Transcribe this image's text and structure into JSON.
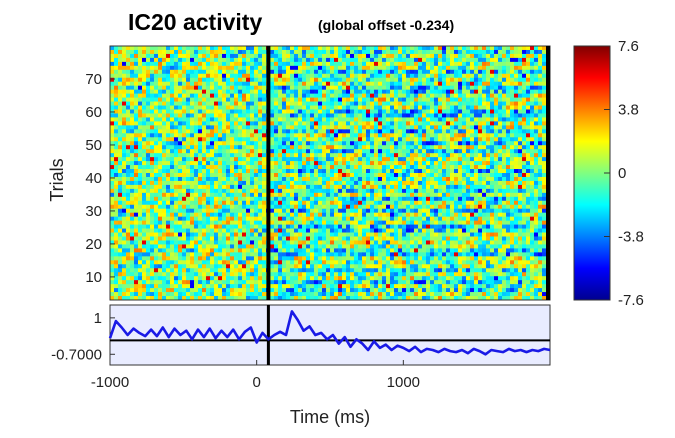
{
  "chart_data": [
    {
      "type": "heatmap",
      "title": "IC20 activity",
      "subtitle": "(global offset -0.234)",
      "xlabel": "",
      "ylabel": "Trials",
      "xlim": [
        -1000,
        2000
      ],
      "ylim": [
        3,
        80
      ],
      "yticks": [
        "10",
        "20",
        "30",
        "40",
        "50",
        "60",
        "70"
      ],
      "event_line_x": 80,
      "colormap": "jet",
      "colorbar": {
        "min": -7.6,
        "max": 7.6,
        "ticks": [
          "7.6",
          "3.8",
          "0",
          "-3.8",
          "-7.6"
        ]
      },
      "grid": false
    },
    {
      "type": "line",
      "title": "",
      "xlabel": "Time (ms)",
      "ylabel": "",
      "xticks": [
        "-1000",
        "0",
        "1000"
      ],
      "yticks": [
        "1",
        "-0.7000"
      ],
      "xlim": [
        -1000,
        2000
      ],
      "ylim": [
        -1.2,
        1.6
      ],
      "event_line_x": 80,
      "baseline": -0.05,
      "series": [
        {
          "color": "#1a1ae6",
          "x": [
            -1000,
            -960,
            -920,
            -880,
            -840,
            -800,
            -760,
            -720,
            -680,
            -640,
            -600,
            -560,
            -520,
            -480,
            -440,
            -400,
            -360,
            -320,
            -280,
            -240,
            -200,
            -160,
            -120,
            -80,
            -40,
            0,
            40,
            80,
            120,
            160,
            200,
            240,
            280,
            320,
            360,
            400,
            440,
            480,
            520,
            560,
            600,
            640,
            680,
            720,
            760,
            800,
            840,
            880,
            920,
            960,
            1000,
            1040,
            1080,
            1120,
            1160,
            1200,
            1240,
            1280,
            1320,
            1360,
            1400,
            1440,
            1480,
            1520,
            1560,
            1600,
            1640,
            1680,
            1720,
            1760,
            1800,
            1840,
            1880,
            1920,
            1960,
            2000
          ],
          "values": [
            0.05,
            0.85,
            0.55,
            0.2,
            0.5,
            0.3,
            0.15,
            0.45,
            0.15,
            0.55,
            0.1,
            0.5,
            0.2,
            0.4,
            0.0,
            0.45,
            0.1,
            0.5,
            0.05,
            0.4,
            0.1,
            0.45,
            0.0,
            0.35,
            0.55,
            -0.15,
            0.3,
            0.0,
            0.2,
            0.35,
            0.2,
            1.3,
            0.9,
            0.4,
            0.6,
            0.2,
            0.3,
            0.0,
            0.2,
            -0.2,
            0.1,
            -0.35,
            0.0,
            -0.2,
            -0.5,
            -0.1,
            -0.4,
            -0.25,
            -0.5,
            -0.3,
            -0.4,
            -0.55,
            -0.35,
            -0.6,
            -0.45,
            -0.5,
            -0.6,
            -0.45,
            -0.55,
            -0.6,
            -0.5,
            -0.65,
            -0.45,
            -0.55,
            -0.7,
            -0.5,
            -0.55,
            -0.6,
            -0.45,
            -0.55,
            -0.5,
            -0.6,
            -0.5,
            -0.55,
            -0.45,
            -0.5
          ]
        }
      ]
    }
  ],
  "colors": {
    "line": "#1a1ae6",
    "lower_bg": "#e9ecff",
    "axis": "#000000"
  }
}
